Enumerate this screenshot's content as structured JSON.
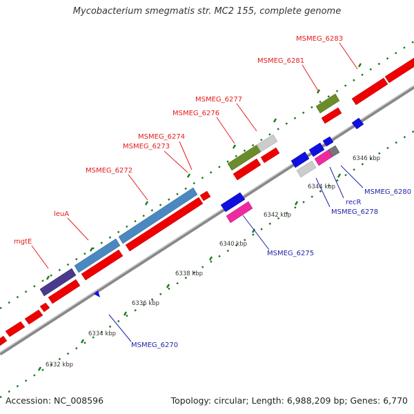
{
  "title": "Mycobacterium smegmatis str. MC2 155, complete genome",
  "footer": {
    "accession": "Accession: NC_008596",
    "info": "Topology: circular; Length: 6,988,209 bp; Genes: 6,770"
  },
  "colors": {
    "forward_label": "#e41a1c",
    "reverse_label": "#1f1fa8",
    "backbone": "#888888",
    "ticks": "#1a7a1a"
  },
  "ticks": [
    "6332 kbp",
    "6334 kbp",
    "6336 kbp",
    "6338 kbp",
    "6340 kbp",
    "6342 kbp",
    "6344 kbp",
    "6346 kbp"
  ],
  "forward_labels": [
    "mgtE",
    "leuA",
    "MSMEG_6272",
    "MSMEG_6273",
    "MSMEG_6274",
    "MSMEG_6276",
    "MSMEG_6277",
    "MSMEG_6281",
    "MSMEG_6283"
  ],
  "reverse_labels": [
    "MSMEG_6270",
    "MSMEG_6275",
    "MSMEG_6278",
    "recR",
    "MSMEG_6280"
  ]
}
